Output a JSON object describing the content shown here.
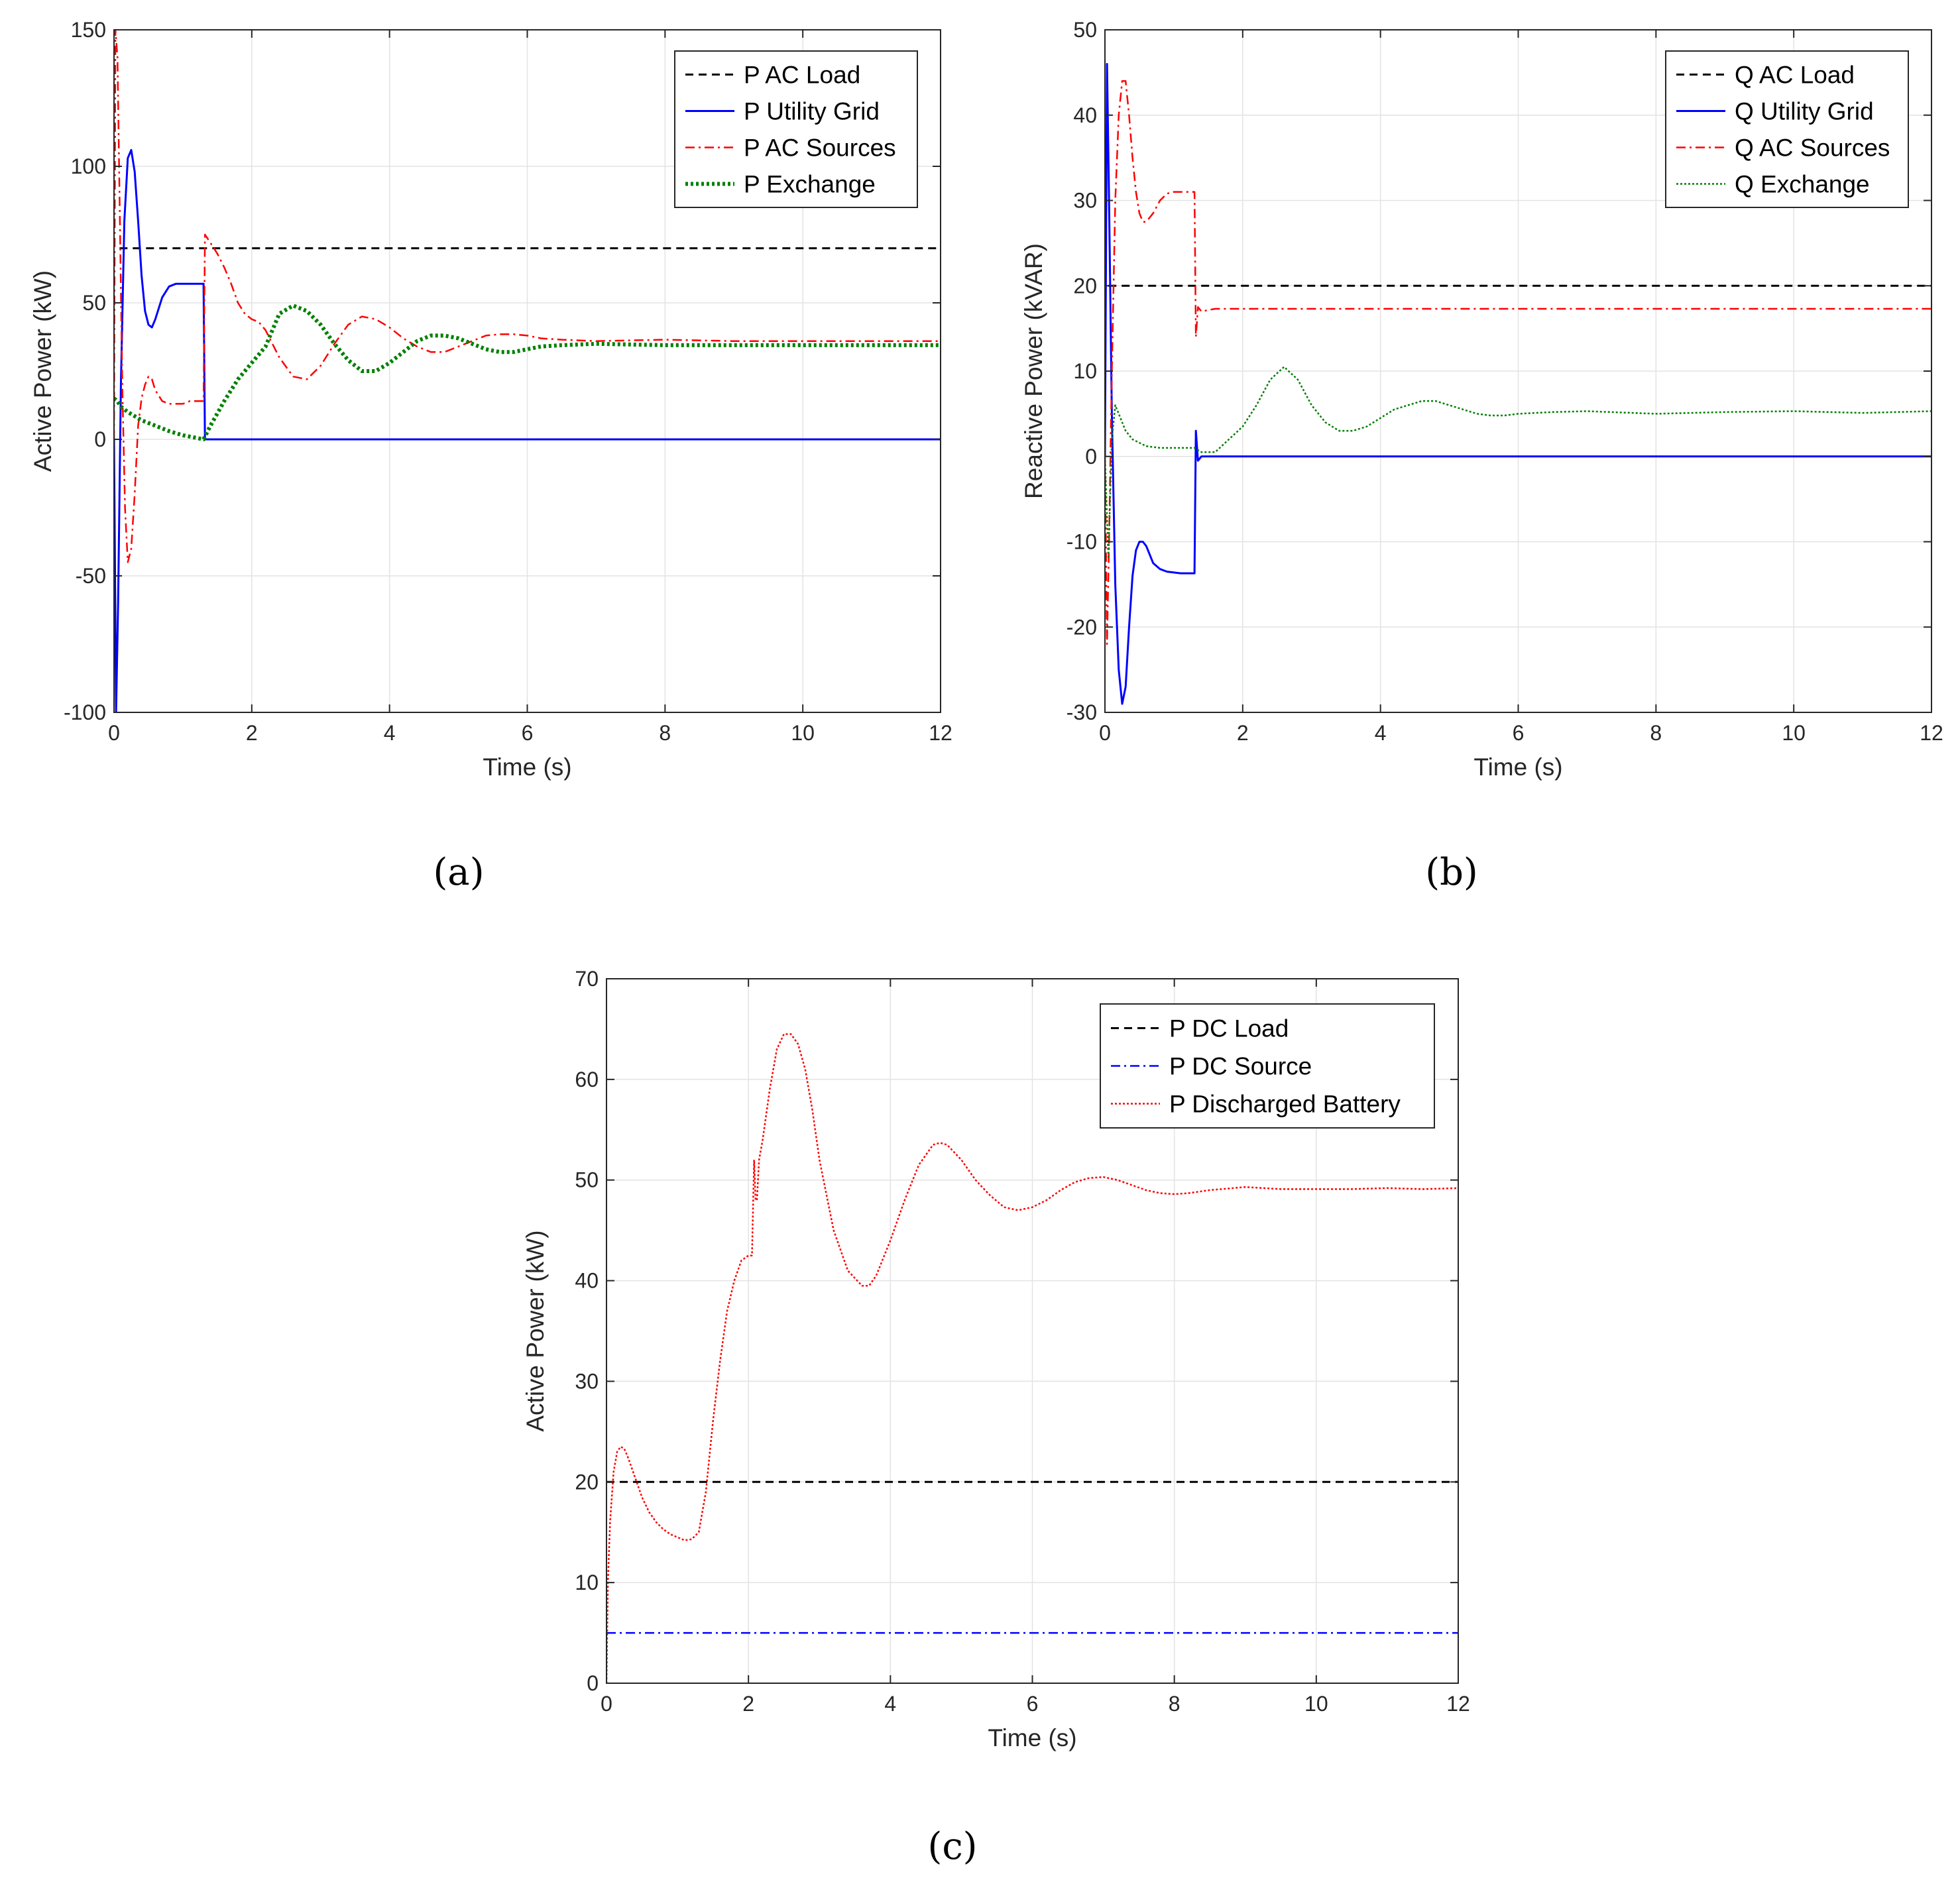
{
  "chart_data": [
    {
      "id": "a",
      "type": "line",
      "caption": "(a)",
      "xlabel": "Time (s)",
      "ylabel": "Active Power (kW)",
      "xlim": [
        0,
        12
      ],
      "ylim": [
        -100,
        150
      ],
      "xticks": [
        0,
        2,
        4,
        6,
        8,
        10,
        12
      ],
      "yticks": [
        -100,
        -50,
        0,
        50,
        100,
        150
      ],
      "grid": true,
      "legend_position": "top-right",
      "series": [
        {
          "name": "P AC Load",
          "color": "#000000",
          "style": "dashed",
          "x": [
            0.08,
            12
          ],
          "y": [
            70,
            70
          ]
        },
        {
          "name": "P Utility Grid",
          "color": "#0000ff",
          "style": "solid",
          "x": [
            0,
            0.03,
            0.06,
            0.1,
            0.15,
            0.2,
            0.25,
            0.3,
            0.35,
            0.4,
            0.45,
            0.5,
            0.55,
            0.6,
            0.7,
            0.8,
            0.9,
            1.0,
            1.1,
            1.2,
            1.3,
            1.32,
            1.4,
            2,
            4,
            6,
            8,
            10,
            12
          ],
          "y": [
            0,
            -100,
            -60,
            20,
            80,
            103,
            106,
            98,
            80,
            60,
            47,
            42,
            41,
            44,
            52,
            56,
            57,
            57,
            57,
            57,
            57,
            0,
            0,
            0,
            0,
            0,
            0,
            0,
            0
          ]
        },
        {
          "name": "P AC Sources",
          "color": "#ff0000",
          "style": "dashdot",
          "x": [
            0,
            0.02,
            0.05,
            0.08,
            0.12,
            0.16,
            0.2,
            0.25,
            0.3,
            0.35,
            0.4,
            0.45,
            0.5,
            0.55,
            0.6,
            0.7,
            0.8,
            0.9,
            1.0,
            1.1,
            1.2,
            1.3,
            1.32,
            1.4,
            1.5,
            1.6,
            1.7,
            1.8,
            1.9,
            2.0,
            2.1,
            2.2,
            2.4,
            2.6,
            2.8,
            3.0,
            3.2,
            3.4,
            3.6,
            3.8,
            4.0,
            4.2,
            4.4,
            4.6,
            4.8,
            5.0,
            5.2,
            5.4,
            5.6,
            5.8,
            6.0,
            6.2,
            6.5,
            7,
            8,
            9,
            10,
            11,
            12
          ],
          "y": [
            0,
            150,
            140,
            90,
            20,
            -25,
            -45,
            -40,
            -20,
            5,
            15,
            20,
            23,
            22,
            18,
            14,
            13,
            13,
            13,
            14,
            14,
            14,
            75,
            72,
            68,
            63,
            57,
            50,
            46,
            44,
            43,
            40,
            30,
            23,
            22,
            27,
            35,
            42,
            45,
            44,
            41,
            37,
            34,
            32,
            32,
            34,
            36,
            38,
            38.5,
            38.5,
            38,
            37,
            36.5,
            36,
            36.5,
            36,
            36,
            36,
            36
          ]
        },
        {
          "name": "P Exchange",
          "color": "#008000",
          "style": "dotted-thick",
          "x": [
            0,
            0.05,
            0.1,
            0.2,
            0.4,
            0.6,
            0.8,
            1.0,
            1.2,
            1.3,
            1.4,
            1.6,
            1.8,
            2.0,
            2.2,
            2.4,
            2.6,
            2.8,
            3.0,
            3.2,
            3.4,
            3.6,
            3.8,
            4.0,
            4.2,
            4.4,
            4.6,
            4.8,
            5.0,
            5.2,
            5.4,
            5.6,
            5.8,
            6.0,
            6.2,
            6.5,
            7,
            8,
            9,
            10,
            11,
            12
          ],
          "y": [
            15,
            14,
            12,
            10,
            7,
            5,
            3,
            1.5,
            0.5,
            0,
            5,
            14,
            22,
            28,
            34,
            46,
            49,
            47,
            42,
            35,
            29,
            25,
            25,
            28,
            32,
            36,
            38,
            38,
            37,
            35,
            33,
            32,
            32,
            33,
            34,
            34.5,
            35,
            34.5,
            34.5,
            34.5,
            34.5,
            34.5
          ]
        }
      ]
    },
    {
      "id": "b",
      "type": "line",
      "caption": "(b)",
      "xlabel": "Time (s)",
      "ylabel": "Reactive Power (kVAR)",
      "xlim": [
        0,
        12
      ],
      "ylim": [
        -30,
        50
      ],
      "xticks": [
        0,
        2,
        4,
        6,
        8,
        10,
        12
      ],
      "yticks": [
        -30,
        -20,
        -10,
        0,
        10,
        20,
        30,
        40,
        50
      ],
      "grid": true,
      "legend_position": "top-right",
      "series": [
        {
          "name": "Q AC Load",
          "color": "#000000",
          "style": "dashed",
          "x": [
            0.05,
            12
          ],
          "y": [
            20,
            20
          ]
        },
        {
          "name": "Q Utility Grid",
          "color": "#0000ff",
          "style": "solid",
          "x": [
            0,
            0.03,
            0.06,
            0.1,
            0.15,
            0.2,
            0.25,
            0.3,
            0.35,
            0.4,
            0.45,
            0.5,
            0.55,
            0.6,
            0.65,
            0.7,
            0.8,
            0.9,
            1.0,
            1.1,
            1.2,
            1.3,
            1.32,
            1.35,
            1.4,
            2,
            4,
            6,
            8,
            10,
            12
          ],
          "y": [
            0,
            46,
            30,
            5,
            -15,
            -25,
            -29,
            -27,
            -20,
            -14,
            -11,
            -10,
            -10,
            -10.5,
            -11.5,
            -12.5,
            -13.2,
            -13.5,
            -13.6,
            -13.7,
            -13.7,
            -13.7,
            3,
            -0.5,
            0,
            0,
            0,
            0,
            0,
            0,
            0
          ]
        },
        {
          "name": "Q AC Sources",
          "color": "#ff0000",
          "style": "dashdot",
          "x": [
            0,
            0.03,
            0.06,
            0.1,
            0.15,
            0.2,
            0.25,
            0.3,
            0.35,
            0.4,
            0.45,
            0.5,
            0.55,
            0.6,
            0.7,
            0.8,
            0.9,
            1.0,
            1.1,
            1.2,
            1.3,
            1.32,
            1.35,
            1.4,
            1.6,
            2,
            4,
            6,
            8,
            10,
            12
          ],
          "y": [
            0,
            -22,
            -10,
            10,
            30,
            40,
            44,
            44,
            40,
            35,
            31,
            28.5,
            27.5,
            27.5,
            28.5,
            30,
            30.8,
            31,
            31,
            31,
            31,
            14,
            17.5,
            17,
            17.3,
            17.3,
            17.3,
            17.3,
            17.3,
            17.3,
            17.3
          ]
        },
        {
          "name": "Q Exchange",
          "color": "#008000",
          "style": "dotted",
          "x": [
            0,
            0.05,
            0.1,
            0.15,
            0.2,
            0.3,
            0.4,
            0.6,
            0.8,
            1.0,
            1.2,
            1.3,
            1.4,
            1.6,
            1.8,
            2.0,
            2.2,
            2.4,
            2.6,
            2.8,
            3.0,
            3.2,
            3.4,
            3.6,
            3.8,
            4.0,
            4.2,
            4.4,
            4.6,
            4.8,
            5.0,
            5.2,
            5.4,
            5.6,
            5.8,
            6.0,
            6.5,
            7,
            8,
            9,
            10,
            11,
            12
          ],
          "y": [
            0,
            -12,
            2,
            6,
            5,
            3,
            2,
            1.2,
            1,
            1,
            1,
            1,
            0.5,
            0.5,
            2,
            3.5,
            6,
            9,
            10.5,
            9,
            6,
            4,
            3,
            3,
            3.5,
            4.5,
            5.5,
            6,
            6.5,
            6.5,
            6,
            5.5,
            5,
            4.8,
            4.8,
            5,
            5.2,
            5.3,
            5,
            5.2,
            5.3,
            5.1,
            5.3
          ]
        }
      ]
    },
    {
      "id": "c",
      "type": "line",
      "caption": "(c)",
      "xlabel": "Time (s)",
      "ylabel": "Active Power (kW)",
      "xlim": [
        0,
        12
      ],
      "ylim": [
        0,
        70
      ],
      "xticks": [
        0,
        2,
        4,
        6,
        8,
        10,
        12
      ],
      "yticks": [
        0,
        10,
        20,
        30,
        40,
        50,
        60,
        70
      ],
      "grid": true,
      "legend_position": "top-right",
      "series": [
        {
          "name": "P DC Load",
          "color": "#000000",
          "style": "dashed",
          "x": [
            0,
            12
          ],
          "y": [
            20,
            20
          ]
        },
        {
          "name": "P DC Source",
          "color": "#0000ff",
          "style": "dashdot",
          "x": [
            0,
            12
          ],
          "y": [
            5,
            5
          ]
        },
        {
          "name": "P Discharged Battery",
          "color": "#ff0000",
          "style": "dotted",
          "x": [
            0,
            0.02,
            0.05,
            0.1,
            0.15,
            0.2,
            0.25,
            0.3,
            0.4,
            0.5,
            0.6,
            0.7,
            0.8,
            0.9,
            1.0,
            1.1,
            1.2,
            1.3,
            1.4,
            1.5,
            1.6,
            1.7,
            1.8,
            1.9,
            2.0,
            2.05,
            2.08,
            2.1,
            2.12,
            2.15,
            2.2,
            2.3,
            2.4,
            2.5,
            2.6,
            2.7,
            2.8,
            2.9,
            3.0,
            3.2,
            3.4,
            3.6,
            3.7,
            3.8,
            4.0,
            4.2,
            4.4,
            4.6,
            4.7,
            4.8,
            5.0,
            5.2,
            5.4,
            5.6,
            5.8,
            6.0,
            6.2,
            6.4,
            6.6,
            6.8,
            7.0,
            7.2,
            7.4,
            7.6,
            7.8,
            8.0,
            8.2,
            8.5,
            9.0,
            9.5,
            10,
            10.5,
            11,
            11.5,
            12
          ],
          "y": [
            0,
            10,
            16,
            21,
            23,
            23.5,
            23.3,
            22.5,
            20.5,
            18.5,
            17,
            16,
            15.3,
            14.8,
            14.5,
            14.2,
            14.3,
            15,
            19,
            26,
            32,
            37,
            40,
            42,
            42.5,
            42.5,
            52,
            48,
            48,
            52,
            54,
            59,
            63,
            64.5,
            64.5,
            63.5,
            61,
            57,
            52,
            45,
            41,
            39.5,
            39.5,
            40.5,
            44,
            48,
            51.5,
            53.5,
            53.7,
            53.5,
            52,
            50,
            48.5,
            47.3,
            47,
            47.3,
            48,
            49,
            49.8,
            50.2,
            50.3,
            50,
            49.5,
            49,
            48.7,
            48.6,
            48.7,
            49,
            49.3,
            49.1,
            49.1,
            49.1,
            49.2,
            49.1,
            49.2
          ]
        }
      ]
    }
  ]
}
